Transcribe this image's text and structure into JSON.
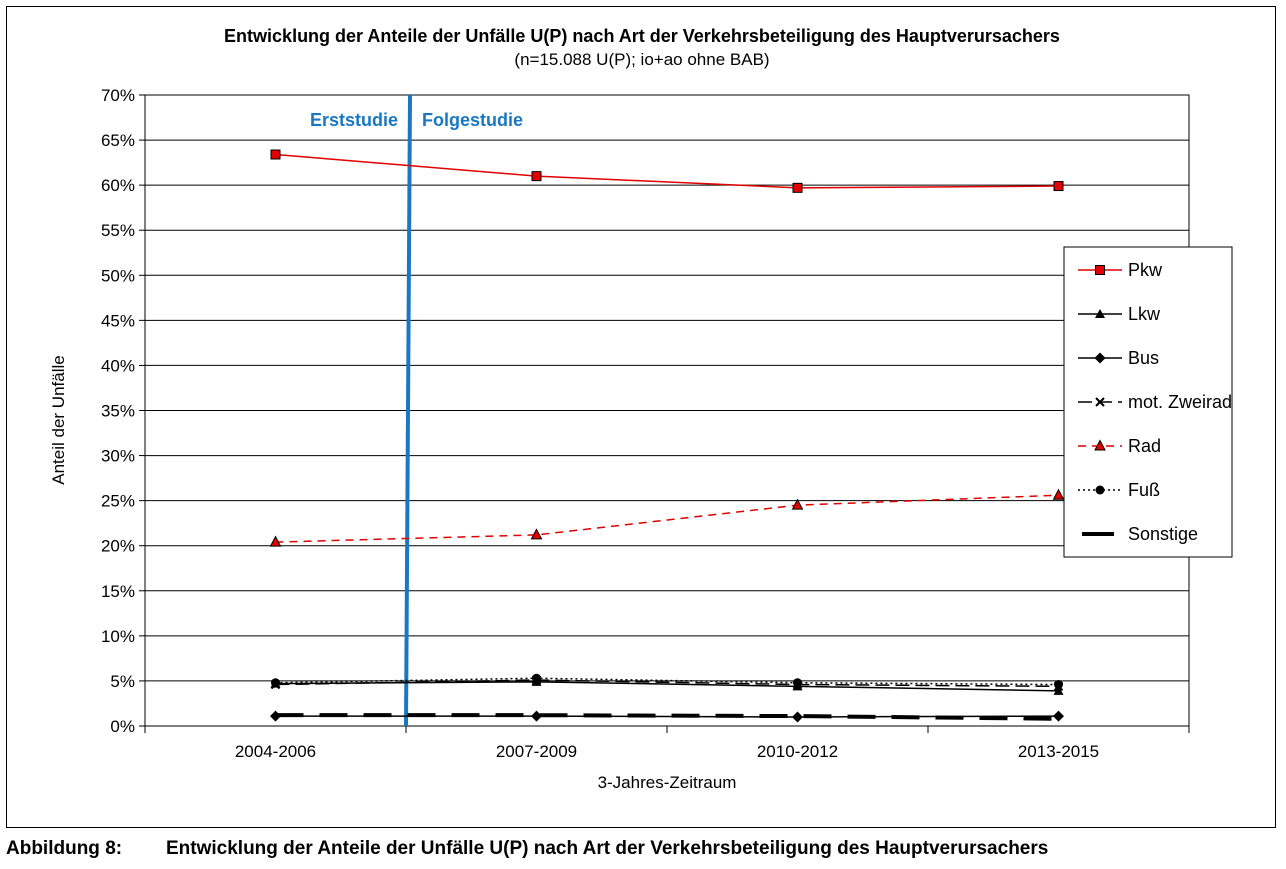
{
  "chart_data": {
    "type": "line",
    "title": "Entwicklung der Anteile der Unfälle U(P) nach Art der Verkehrsbeteiligung des Hauptverursachers",
    "subtitle": "(n=15.088 U(P); io+ao ohne BAB)",
    "xlabel": "3-Jahres-Zeitraum",
    "ylabel": "Anteil der Unfälle",
    "categories": [
      "2004-2006",
      "2007-2009",
      "2010-2012",
      "2013-2015"
    ],
    "ylim": [
      0,
      70
    ],
    "yticks": [
      0,
      5,
      10,
      15,
      20,
      25,
      30,
      35,
      40,
      45,
      50,
      55,
      60,
      65,
      70
    ],
    "ytick_labels": [
      "0%",
      "5%",
      "10%",
      "15%",
      "20%",
      "25%",
      "30%",
      "35%",
      "40%",
      "45%",
      "50%",
      "55%",
      "60%",
      "65%",
      "70%"
    ],
    "grid": "horizontal",
    "legend_position": "right",
    "divider": {
      "after_category_index": 0,
      "left_label": "Erststudie",
      "right_label": "Folgestudie",
      "color": "#1a78c2"
    },
    "series": [
      {
        "name": "Pkw",
        "values": [
          63.4,
          61.0,
          59.7,
          59.9
        ],
        "color": "#e00000",
        "marker": "square",
        "dash": "solid"
      },
      {
        "name": "Lkw",
        "values": [
          4.7,
          4.9,
          4.4,
          3.9
        ],
        "color": "#000000",
        "marker": "triangle",
        "dash": "solid"
      },
      {
        "name": "Bus",
        "values": [
          1.1,
          1.1,
          1.0,
          1.1
        ],
        "color": "#000000",
        "marker": "diamond",
        "dash": "solid"
      },
      {
        "name": "mot. Zweirad",
        "values": [
          4.6,
          5.1,
          4.6,
          4.4
        ],
        "color": "#000000",
        "marker": "x",
        "dash": "longdash"
      },
      {
        "name": "Rad",
        "values": [
          20.4,
          21.2,
          24.5,
          25.6
        ],
        "color": "#e00000",
        "marker": "triangle-red",
        "dash": "dashed"
      },
      {
        "name": "Fuß",
        "values": [
          4.8,
          5.3,
          4.8,
          4.6
        ],
        "color": "#000000",
        "marker": "circle",
        "dash": "dotted"
      },
      {
        "name": "Sonstige",
        "values": [
          1.2,
          1.2,
          1.1,
          0.8
        ],
        "color": "#000000",
        "marker": "none",
        "dash": "heavydash"
      }
    ]
  },
  "caption": {
    "label": "Abbildung 8:",
    "text": "Entwicklung der Anteile der Unfälle U(P) nach Art der Verkehrsbeteiligung des Hauptverursachers"
  }
}
